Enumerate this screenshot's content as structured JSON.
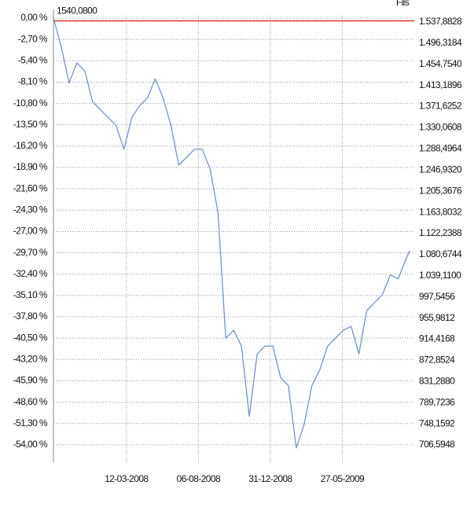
{
  "chart_data": {
    "type": "line",
    "y2_label": "Fils",
    "reference": {
      "value": 1540.08,
      "label": "1540,0800",
      "axis": "y2",
      "color": "#e03030"
    },
    "x": [
      "2007-10-15",
      "2007-10-31",
      "2007-11-16",
      "2007-12-02",
      "2007-12-18",
      "2008-01-03",
      "2008-01-19",
      "2008-02-04",
      "2008-02-20",
      "2008-03-07",
      "2008-03-23",
      "2008-04-08",
      "2008-04-24",
      "2008-05-10",
      "2008-05-26",
      "2008-06-11",
      "2008-06-27",
      "2008-07-13",
      "2008-07-29",
      "2008-08-14",
      "2008-08-30",
      "2008-09-15",
      "2008-10-01",
      "2008-10-17",
      "2008-11-02",
      "2008-11-18",
      "2008-12-04",
      "2008-12-20",
      "2009-01-05",
      "2009-01-21",
      "2009-02-06",
      "2009-02-22",
      "2009-03-10",
      "2009-03-26",
      "2009-04-11",
      "2009-04-27",
      "2009-05-13",
      "2009-05-29",
      "2009-06-14",
      "2009-06-30",
      "2009-07-16",
      "2009-08-01",
      "2009-08-17",
      "2009-09-02",
      "2009-09-18",
      "2009-10-04",
      "2009-10-12"
    ],
    "series": [
      {
        "color": "#6b95d8",
        "values": [
          0,
          -3.7,
          -8.2,
          -5.7,
          -6.7,
          -10.6,
          -11.6,
          -12.6,
          -13.6,
          -16.6,
          -12.6,
          -11.1,
          -10.1,
          -7.7,
          -10.1,
          -13.6,
          -18.6,
          -17.6,
          -16.6,
          -16.6,
          -19.1,
          -24.6,
          -40.5,
          -39.5,
          -41.5,
          -50.4,
          -42.5,
          -41.5,
          -41.5,
          -45.5,
          -46.5,
          -54.4,
          -51.4,
          -46.5,
          -44.5,
          -41.5,
          -40.5,
          -39.5,
          -39.0,
          -42.5,
          -37.0,
          -36.0,
          -35.0,
          -32.5,
          -33.0,
          -30.5,
          -29.4
        ]
      }
    ],
    "xlim": [
      "2007-10-15",
      "2009-10-21"
    ],
    "xticks": [
      {
        "value": "2008-03-12",
        "label": "12-03-2008"
      },
      {
        "value": "2008-08-06",
        "label": "06-08-2008"
      },
      {
        "value": "2008-12-31",
        "label": "31-12-2008"
      },
      {
        "value": "2009-05-27",
        "label": "27-05-2009"
      }
    ],
    "ylim": [
      -56.2,
      0.3
    ],
    "yticks": [
      {
        "value": 0,
        "label": "0,00 %"
      },
      {
        "value": -2.7,
        "label": "-2,70 %"
      },
      {
        "value": -5.4,
        "label": "-5,40 %"
      },
      {
        "value": -8.1,
        "label": "-8,10 %"
      },
      {
        "value": -10.8,
        "label": "-10,80 %"
      },
      {
        "value": -13.5,
        "label": "-13,50 %"
      },
      {
        "value": -16.2,
        "label": "-16,20 %"
      },
      {
        "value": -18.9,
        "label": "-18,90 %"
      },
      {
        "value": -21.6,
        "label": "-21,60 %"
      },
      {
        "value": -24.3,
        "label": "-24,30 %"
      },
      {
        "value": -27,
        "label": "-27,00 %"
      },
      {
        "value": -29.7,
        "label": "-29,70 %"
      },
      {
        "value": -32.4,
        "label": "-32,40 %"
      },
      {
        "value": -35.1,
        "label": "-35,10 %"
      },
      {
        "value": -37.8,
        "label": "-37,80 %"
      },
      {
        "value": -40.5,
        "label": "-40,50 %"
      },
      {
        "value": -43.2,
        "label": "-43,20 %"
      },
      {
        "value": -45.9,
        "label": "-45,90 %"
      },
      {
        "value": -48.6,
        "label": "-48,60 %"
      },
      {
        "value": -51.3,
        "label": "-51,30 %"
      },
      {
        "value": -54,
        "label": "-54,00 %"
      }
    ],
    "y2lim": [
      672.6,
      1550.2
    ],
    "y2ticks": [
      {
        "value": 1537.8828,
        "label": "1.537,8828"
      },
      {
        "value": 1496.3184,
        "label": "1.496,3184"
      },
      {
        "value": 1454.754,
        "label": "1.454,7540"
      },
      {
        "value": 1413.1896,
        "label": "1.413,1896"
      },
      {
        "value": 1371.6252,
        "label": "1.371,6252"
      },
      {
        "value": 1330.0608,
        "label": "1.330,0608"
      },
      {
        "value": 1288.4964,
        "label": "1.288,4964"
      },
      {
        "value": 1246.932,
        "label": "1.246,9320"
      },
      {
        "value": 1205.3676,
        "label": "1.205,3676"
      },
      {
        "value": 1163.8032,
        "label": "1.163,8032"
      },
      {
        "value": 1122.2388,
        "label": "1.122,2388"
      },
      {
        "value": 1080.6744,
        "label": "1.080,6744"
      },
      {
        "value": 1039.11,
        "label": "1.039,1100"
      },
      {
        "value": 997.5456,
        "label": "997,5456"
      },
      {
        "value": 955.9812,
        "label": "955,9812"
      },
      {
        "value": 914.4168,
        "label": "914,4168"
      },
      {
        "value": 872.8524,
        "label": "872,8524"
      },
      {
        "value": 831.288,
        "label": "831,2880"
      },
      {
        "value": 789.7236,
        "label": "789,7236"
      },
      {
        "value": 748.1592,
        "label": "748,1592"
      },
      {
        "value": 706.5948,
        "label": "706,5948"
      }
    ],
    "grid": true
  }
}
